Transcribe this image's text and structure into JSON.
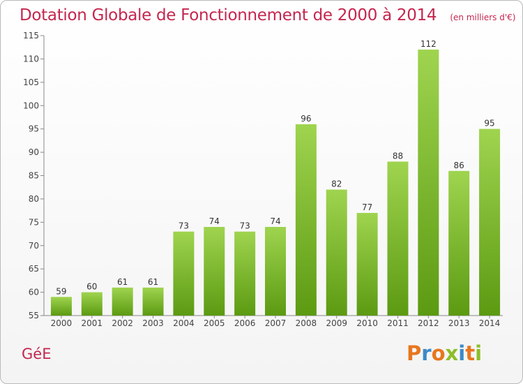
{
  "header": {
    "title": "Dotation Globale de Fonctionnement de 2000 à 2014",
    "unit": "(en milliers d'€)"
  },
  "commune": "GéE",
  "logo": {
    "text": "Proxiti",
    "letters": [
      {
        "char": "P",
        "color": "#e8761e"
      },
      {
        "char": "r",
        "color": "#3a8ac8"
      },
      {
        "char": "o",
        "color": "#e8761e"
      },
      {
        "char": "x",
        "color": "#8cbf26"
      },
      {
        "char": "i",
        "color": "#3a8ac8"
      },
      {
        "char": "t",
        "color": "#e8761e"
      },
      {
        "char": "i",
        "color": "#8cbf26"
      }
    ]
  },
  "colors": {
    "title": "#c5264e",
    "bar_light": "#9fd44f",
    "bar_dark": "#5c9a12"
  },
  "chart_data": {
    "type": "bar",
    "title": "Dotation Globale de Fonctionnement de 2000 à 2014",
    "subtitle": "(en milliers d'€)",
    "categories": [
      "2000",
      "2001",
      "2002",
      "2003",
      "2004",
      "2005",
      "2006",
      "2007",
      "2008",
      "2009",
      "2010",
      "2011",
      "2012",
      "2013",
      "2014"
    ],
    "values": [
      59,
      60,
      61,
      61,
      73,
      74,
      73,
      74,
      96,
      82,
      77,
      88,
      112,
      86,
      95
    ],
    "ylim": [
      55,
      115
    ],
    "yticks": [
      55,
      60,
      65,
      70,
      75,
      80,
      85,
      90,
      95,
      100,
      105,
      110,
      115
    ],
    "grid": false,
    "legend": "none"
  }
}
